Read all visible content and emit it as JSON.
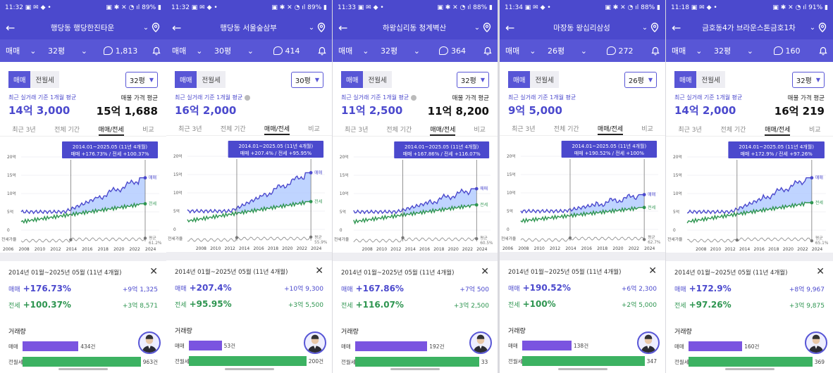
{
  "colors": {
    "primary": "#4b49cd",
    "sale": "#4b49cd",
    "rent": "#2e9550",
    "fill": "#a9c6ff"
  },
  "icons": {
    "back": "arrow-left-icon",
    "pin": "map-pin-icon",
    "chat": "chat-bubble-icon",
    "bell": "bell-icon",
    "close": "close-icon"
  },
  "common": {
    "trade_label": "매매",
    "seg_sale": "매매",
    "seg_rent": "전월세",
    "avg_label": "최근 실거래 기준 1개월 평균",
    "listing_label": "매물 가격 평균",
    "tabs": [
      "최근 3년",
      "전체 기간",
      "매매/전세",
      "비교"
    ],
    "legend_sale": "매매",
    "legend_rent": "전세",
    "ratio_axis": "전세가율",
    "ratio_label": "평균",
    "y_ticks": [
      "20억",
      "15억",
      "10억",
      "5억",
      "0"
    ],
    "range_label": "2014년 01월~2025년 05월 (11년 4개월)",
    "sale_label": "매매",
    "rent_label": "전세",
    "volume_title": "거래량",
    "vol_sale": "매매",
    "vol_rent": "전월세"
  },
  "phones": [
    {
      "time": "11:32",
      "battery": "89%",
      "title": "행당동 행당한진타운",
      "size": "32평",
      "count": "1,813",
      "avg_price": "14억 3,000",
      "listing_price": "15억 1,688",
      "tooltip_1": "2014.01~2025.05 (11년 4개월)",
      "tooltip_2": "매매 +176.73%  /  전세 +100.37%",
      "ratio": "61.2%",
      "years": [
        "2006",
        "2008",
        "2010",
        "2012",
        "2014",
        "2016",
        "2018",
        "2020",
        "2022",
        "2024"
      ],
      "sale_pct": "+176.73%",
      "sale_amt": "+9억 1,325",
      "rent_pct": "+100.37%",
      "rent_amt": "+3억 8,571",
      "vol_sale": "434건",
      "vol_rent": "963건"
    },
    {
      "time": "11:32",
      "battery": "89%",
      "title": "행당동 서울숲삼부",
      "size": "30평",
      "count": "414",
      "avg_price": "16억 2,000",
      "listing_price": "",
      "tooltip_1": "2014.01~2025.05 (11년 4개월)",
      "tooltip_2": "매매 +207.4%  /  전세 +95.95%",
      "ratio": "55.9%",
      "years": [
        "2008",
        "2010",
        "2012",
        "2014",
        "2016",
        "2018",
        "2020",
        "2022",
        "2024"
      ],
      "sale_pct": "+207.4%",
      "sale_amt": "+10억 9,300",
      "rent_pct": "+95.95%",
      "rent_amt": "+3억 5,500",
      "vol_sale": "53건",
      "vol_rent": "200건"
    },
    {
      "time": "11:33",
      "battery": "88%",
      "title": "하왕십리동 청계벽산",
      "size": "32평",
      "count": "364",
      "avg_price": "11억 2,500",
      "listing_price": "11억 8,200",
      "tooltip_1": "2014.01~2025.05 (11년 4개월)",
      "tooltip_2": "매매 +167.86%  /  전세 +116.07%",
      "ratio": "60.5%",
      "years": [
        "2008",
        "2010",
        "2012",
        "2014",
        "2016",
        "2018",
        "2020",
        "2022",
        "2024"
      ],
      "sale_pct": "+167.86%",
      "sale_amt": "+7억 500",
      "rent_pct": "+116.07%",
      "rent_amt": "+3억 2,500",
      "vol_sale": "192건",
      "vol_rent": "33"
    },
    {
      "time": "11:34",
      "battery": "88%",
      "title": "마장동 왕십리삼성",
      "size": "26평",
      "count": "272",
      "avg_price": "9억 5,000",
      "listing_price": "",
      "tooltip_1": "2014.01~2025.05 (11년 4개월)",
      "tooltip_2": "매매 +190.52%  /  전세 +100%",
      "ratio": "62.7%",
      "years": [
        "2006",
        "2008",
        "2010",
        "2012",
        "2014",
        "2016",
        "2018",
        "2020",
        "2022",
        "2024"
      ],
      "sale_pct": "+190.52%",
      "sale_amt": "+6억 2,300",
      "rent_pct": "+100%",
      "rent_amt": "+2억 5,000",
      "vol_sale": "138건",
      "vol_rent": "347"
    },
    {
      "time": "11:18",
      "battery": "91%",
      "title": "금호동4가 브라운스톤금호1차",
      "size": "32평",
      "count": "160",
      "avg_price": "14억 2,000",
      "listing_price": "16억 219",
      "tooltip_1": "2014.01~2025.05 (11년 4개월)",
      "tooltip_2": "매매 +172.9%  /  전세 +97.26%",
      "ratio": "65.1%",
      "years": [
        "2008",
        "2010",
        "2012",
        "2014",
        "2016",
        "2018",
        "2020",
        "2022",
        "2024"
      ],
      "sale_pct": "+172.9%",
      "sale_amt": "+8억 9,967",
      "rent_pct": "+97.26%",
      "rent_amt": "+3억 9,875",
      "vol_sale": "160건",
      "vol_rent": "369"
    }
  ]
}
